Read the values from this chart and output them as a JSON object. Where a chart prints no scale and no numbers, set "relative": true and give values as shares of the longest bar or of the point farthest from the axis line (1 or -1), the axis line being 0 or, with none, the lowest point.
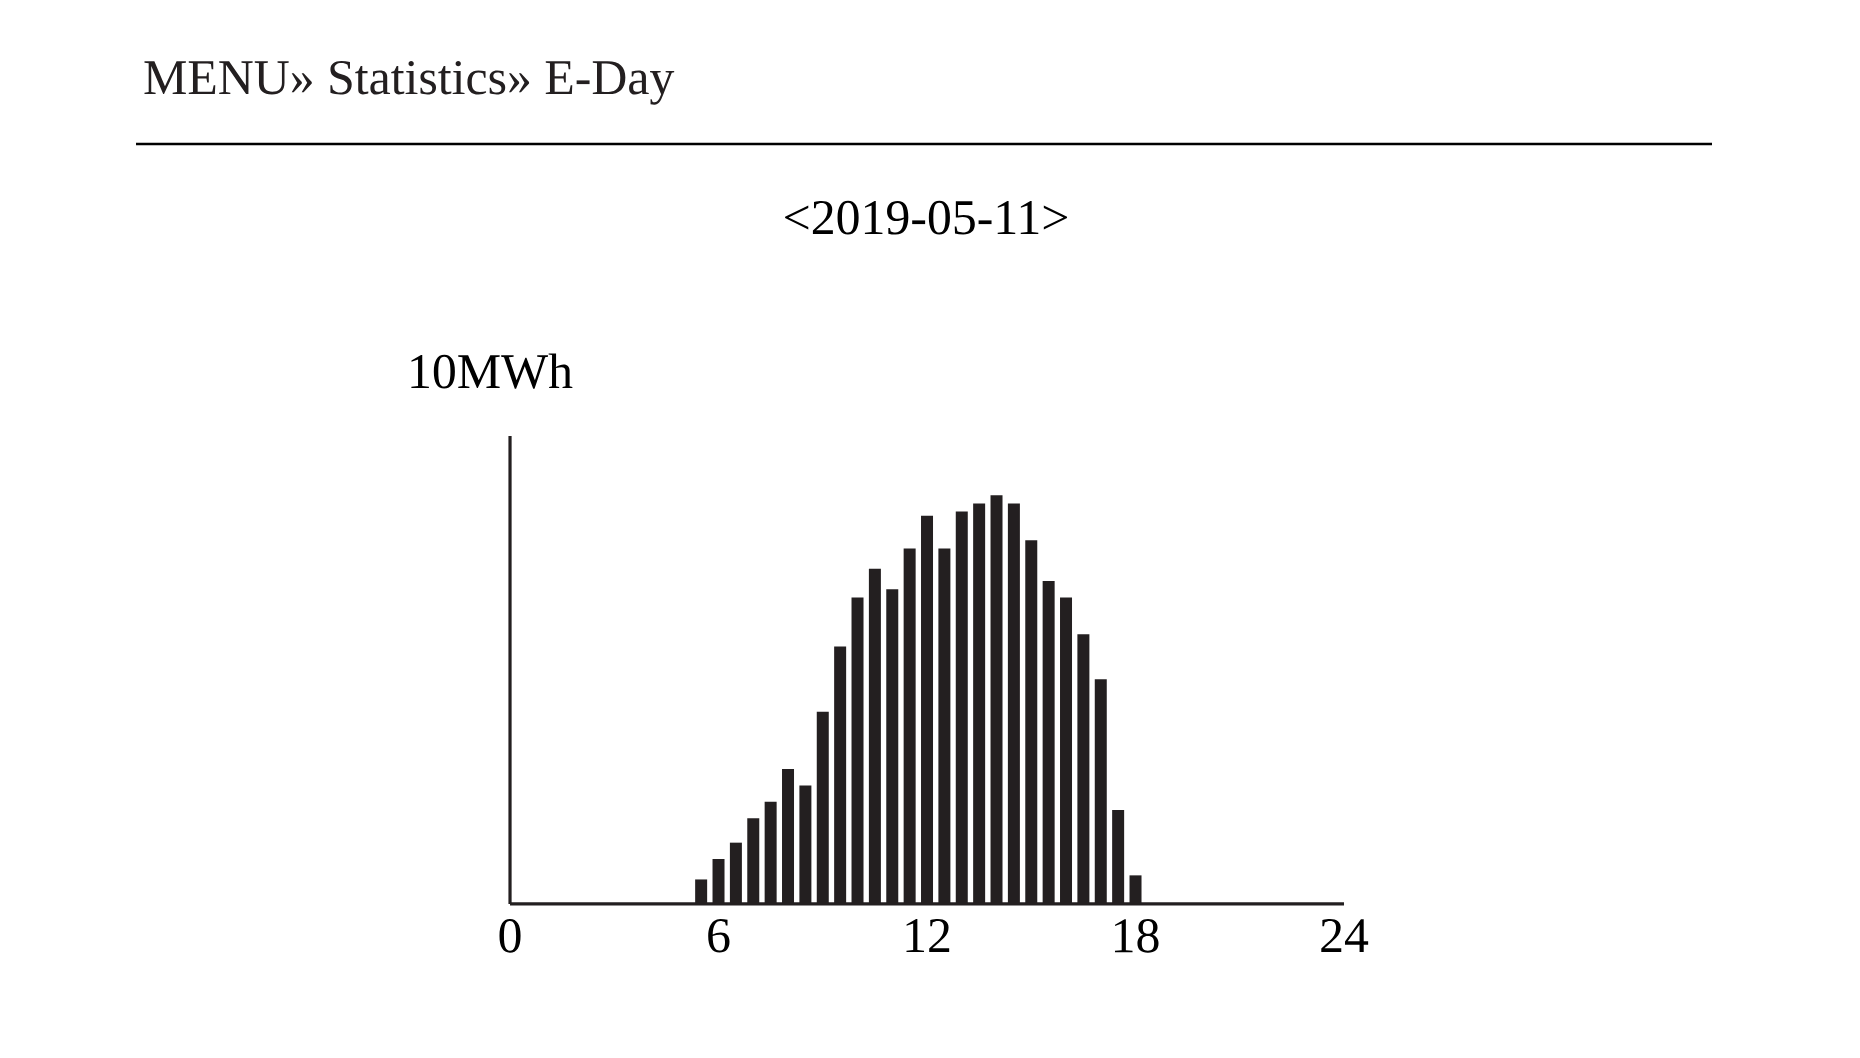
{
  "chart_data": {
    "type": "bar",
    "title": "MENU» Statistics» E-Day",
    "subtitle": "<2019-05-11>",
    "ylabel": "10MWh",
    "x": [
      5.5,
      6,
      6.5,
      7,
      7.5,
      8,
      8.5,
      9,
      9.5,
      10,
      10.5,
      11,
      11.5,
      12,
      12.5,
      13,
      13.5,
      14,
      14.5,
      15,
      15.5,
      16,
      16.5,
      17,
      17.5,
      18
    ],
    "values": [
      0.06,
      0.11,
      0.15,
      0.21,
      0.25,
      0.33,
      0.29,
      0.47,
      0.63,
      0.75,
      0.82,
      0.77,
      0.87,
      0.95,
      0.87,
      0.96,
      0.98,
      1,
      0.98,
      0.89,
      0.79,
      0.75,
      0.66,
      0.55,
      0.23,
      0.07
    ],
    "relative": true,
    "color": "#231f20",
    "xlim": [
      0,
      24
    ],
    "xticks": [
      0,
      6,
      12,
      18,
      24
    ]
  }
}
